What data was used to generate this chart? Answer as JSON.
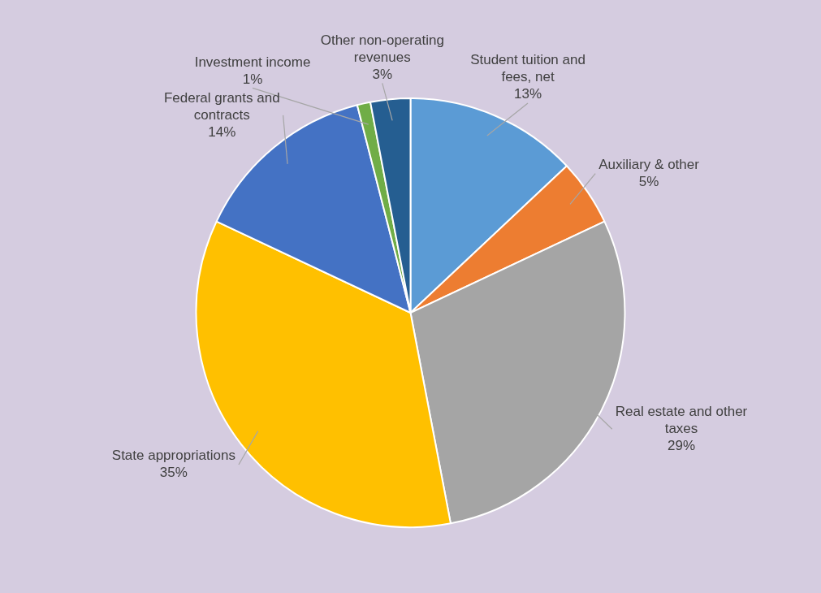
{
  "chart_data": {
    "type": "pie",
    "categories": [
      "Student tuition and fees, net",
      "Auxiliary & other",
      "Real estate and other taxes",
      "State appropriations",
      "Federal grants and contracts",
      "Investment income",
      "Other non-operating revenues"
    ],
    "values": [
      13,
      5,
      29,
      35,
      14,
      1,
      3
    ],
    "value_labels": [
      "13%",
      "5%",
      "29%",
      "35%",
      "14%",
      "1%",
      "3%"
    ],
    "colors": [
      "#5b9bd5",
      "#ed7d31",
      "#a5a5a5",
      "#ffc000",
      "#4472c4",
      "#70ad47",
      "#255e91"
    ]
  }
}
